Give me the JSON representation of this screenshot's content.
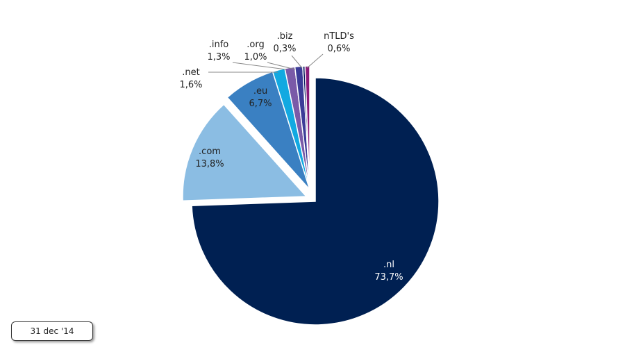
{
  "chart_data": {
    "type": "pie",
    "title": "",
    "slices": [
      {
        "label": ".nl",
        "value": 73.7,
        "value_label": "73,7%",
        "color": "#002052",
        "exploded": true
      },
      {
        "label": ".com",
        "value": 13.8,
        "value_label": "13,8%",
        "color": "#8bbde3",
        "exploded": true
      },
      {
        "label": ".eu",
        "value": 6.7,
        "value_label": "6,7%",
        "color": "#3a80c2"
      },
      {
        "label": ".net",
        "value": 1.6,
        "value_label": "1,6%",
        "color": "#12a9e1"
      },
      {
        "label": ".info",
        "value": 1.3,
        "value_label": "1,3%",
        "color": "#7a5aa8"
      },
      {
        "label": ".org",
        "value": 1.0,
        "value_label": "1,0%",
        "color": "#3c3c98"
      },
      {
        "label": ".biz",
        "value": 0.3,
        "value_label": "0,3%",
        "color": "#0a1a60"
      },
      {
        "label": "nTLD's",
        "value": 0.6,
        "value_label": "0,6%",
        "color": "#8a1a7a"
      }
    ]
  },
  "date_label": "31 dec '14"
}
